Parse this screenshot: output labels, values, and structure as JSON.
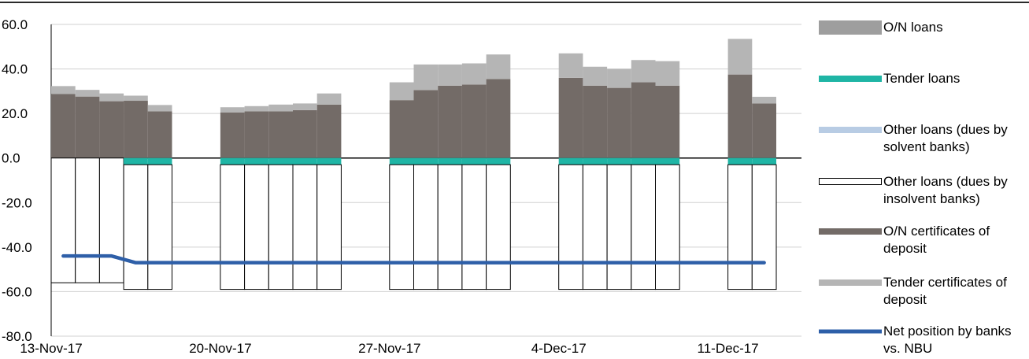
{
  "chart_data": {
    "type": "bar",
    "title": "",
    "xlabel": "",
    "ylabel": "",
    "ylim": [
      -80,
      60
    ],
    "yticks": [
      "60.0",
      "40.0",
      "20.0",
      "0.0",
      "-20.0",
      "-40.0",
      "-60.0",
      "-80.0"
    ],
    "xtick_labels": [
      "13-Nov-17",
      "20-Nov-17",
      "27-Nov-17",
      "4-Dec-17",
      "11-Dec-17"
    ],
    "grid": true,
    "legend_position": "right",
    "dates": [
      "13-Nov-17",
      "14-Nov-17",
      "15-Nov-17",
      "16-Nov-17",
      "17-Nov-17",
      "20-Nov-17",
      "21-Nov-17",
      "22-Nov-17",
      "23-Nov-17",
      "24-Nov-17",
      "27-Nov-17",
      "28-Nov-17",
      "29-Nov-17",
      "30-Nov-17",
      "1-Dec-17",
      "4-Dec-17",
      "5-Dec-17",
      "6-Dec-17",
      "7-Dec-17",
      "8-Dec-17",
      "11-Dec-17",
      "12-Dec-17"
    ],
    "series": [
      {
        "name": "O/N loans",
        "color": "#9e9e9e",
        "values": [
          0,
          0,
          0,
          0,
          0,
          0,
          0,
          0,
          0,
          0,
          0,
          0,
          0,
          0,
          0,
          0,
          0,
          0,
          0,
          0,
          0,
          0
        ]
      },
      {
        "name": "Tender loans",
        "color": "#1fb5a5",
        "values": [
          0,
          0,
          0,
          -3,
          -3,
          -3,
          -3,
          -3,
          -3,
          -3,
          -3,
          -3,
          -3,
          -3,
          -3,
          -3,
          -3,
          -3,
          -3,
          -3,
          -3,
          -3
        ]
      },
      {
        "name": "Other loans (dues by solvent  banks)",
        "color": "#b8cce4",
        "values": [
          0,
          0,
          0,
          0,
          0,
          0,
          0,
          0,
          0,
          0,
          0,
          0,
          0,
          0,
          0,
          0,
          0,
          0,
          0,
          0,
          0,
          0
        ]
      },
      {
        "name": "Other loans (dues by insolvent  banks)",
        "color": "#ffffff",
        "values": [
          -56,
          -56,
          -56,
          -56,
          -56,
          -56,
          -56,
          -56,
          -56,
          -56,
          -56,
          -56,
          -56,
          -56,
          -56,
          -56,
          -56,
          -56,
          -56,
          -56,
          -56,
          -56
        ]
      },
      {
        "name": "O/N certificates of deposit",
        "color": "#736b67",
        "values": [
          28.8,
          27.6,
          25.5,
          25.7,
          21,
          20.5,
          21,
          21,
          21.5,
          24,
          26,
          30.5,
          32.5,
          33,
          35.5,
          36,
          32.5,
          31.5,
          34,
          32.5,
          37.5,
          24.5
        ]
      },
      {
        "name": "Tender certificates of deposit",
        "color": "#b5b5b5",
        "values": [
          3.5,
          3.0,
          3.5,
          2.3,
          2.8,
          2.3,
          2.3,
          3.0,
          3.0,
          5.0,
          8.0,
          11.5,
          9.5,
          9.5,
          11.0,
          11.0,
          8.5,
          8.5,
          10.0,
          11.0,
          16.0,
          3.0
        ]
      },
      {
        "name": "Net position by banks vs. NBU",
        "color": "#2e5fa8",
        "values": [
          -44,
          -44,
          -44,
          -47,
          -47,
          -47,
          -47,
          -47,
          -47,
          -47,
          -47,
          -47,
          -47,
          -47,
          -47,
          -47,
          -47,
          -47,
          -47,
          -47,
          -47,
          -47
        ]
      }
    ]
  },
  "legend": {
    "items": [
      {
        "key": "on_loans",
        "label": "O/N loans",
        "color": "#9e9e9e",
        "kind": "bar"
      },
      {
        "key": "tender_loans",
        "label": "Tender loans",
        "color": "#1fb5a5",
        "kind": "thinbar"
      },
      {
        "key": "other_solvent",
        "label": "Other loans (dues by solvent  banks)",
        "color": "#b8cce4",
        "kind": "thinbar"
      },
      {
        "key": "other_insolvent",
        "label": "Other loans (dues by insolvent  banks)",
        "color": "#ffffff",
        "kind": "outline"
      },
      {
        "key": "on_cd",
        "label": "O/N certificates of deposit",
        "color": "#736b67",
        "kind": "thinbar"
      },
      {
        "key": "tender_cd",
        "label": "Tender certificates of deposit",
        "color": "#b5b5b5",
        "kind": "thinbar"
      },
      {
        "key": "net_position",
        "label": "Net position by banks vs. NBU",
        "color": "#2e5fa8",
        "kind": "line"
      }
    ]
  }
}
